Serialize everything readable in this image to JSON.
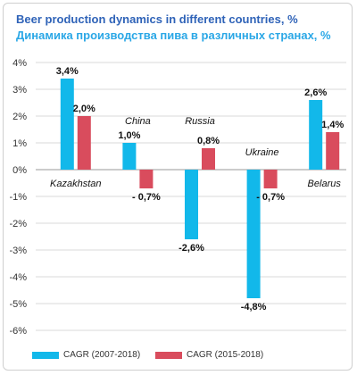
{
  "chart_data": {
    "type": "bar",
    "title": "Beer production dynamics in different countries, %",
    "subtitle": "Динамика производства пива в различных странах, %",
    "categories": [
      "Kazakhstan",
      "China",
      "Russia",
      "Ukraine",
      "Belarus"
    ],
    "series": [
      {
        "name": "CAGR (2007-2018)",
        "color": "#12b8ea",
        "values": [
          3.4,
          1.0,
          -2.6,
          -4.8,
          2.6
        ],
        "labels": [
          "3,4%",
          "1,0%",
          "-2,6%",
          "-4,8%",
          "2,6%"
        ]
      },
      {
        "name": "CAGR (2015-2018)",
        "color": "#d94c5d",
        "values": [
          2.0,
          -0.7,
          0.8,
          -0.7,
          1.4
        ],
        "labels": [
          "2,0%",
          "- 0,7%",
          "0,8%",
          "- 0,7%",
          "1,4%"
        ]
      }
    ],
    "ylim": [
      -6,
      4
    ],
    "yticks": [
      4,
      3,
      2,
      1,
      0,
      -1,
      -2,
      -3,
      -4,
      -5,
      -6
    ],
    "ytick_labels": [
      "4%",
      "3%",
      "2%",
      "1%",
      "0%",
      "-1%",
      "-2%",
      "-3%",
      "-4%",
      "-5%",
      "-6%"
    ],
    "grid": true,
    "legend": "bottom"
  }
}
